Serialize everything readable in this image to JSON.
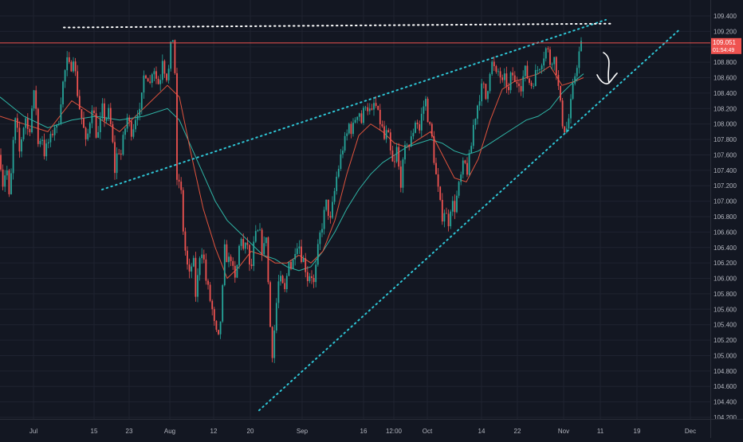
{
  "chart_data": {
    "type": "candlestick",
    "symbol_price_label": "109.051",
    "countdown_label": "01:54:49",
    "y_ticks": [
      "104.200",
      "104.400",
      "104.600",
      "104.800",
      "105.000",
      "105.200",
      "105.400",
      "105.600",
      "105.800",
      "106.000",
      "106.200",
      "106.400",
      "106.600",
      "106.800",
      "107.000",
      "107.200",
      "107.400",
      "107.600",
      "107.800",
      "108.000",
      "108.200",
      "108.400",
      "108.600",
      "108.800",
      "109.000",
      "109.200",
      "109.400"
    ],
    "y_range": [
      104.13,
      109.47
    ],
    "x_ticks": [
      "Jul",
      "15",
      "23",
      "Aug",
      "12",
      "20",
      "Sep",
      "16",
      "12:00",
      "Oct",
      "14",
      "22",
      "Nov",
      "11",
      "19",
      "Dec"
    ],
    "current_price": 109.051,
    "colors": {
      "background": "#131722",
      "grid": "#1f2330",
      "up": "#26a69a",
      "down": "#ef5350",
      "ma_fast": "#e0533d",
      "ma_slow": "#2fb5a6",
      "trendline": "#2ec6d6",
      "resistance": "#ffffff",
      "price_line": "#ef5350",
      "axis_text": "#b2b5be"
    },
    "price_path": [
      [
        0,
        107.6
      ],
      [
        4,
        107.2
      ],
      [
        8,
        107.5
      ],
      [
        12,
        106.95
      ],
      [
        16,
        107.7
      ],
      [
        20,
        108.1
      ],
      [
        24,
        107.6
      ],
      [
        28,
        107.9
      ],
      [
        32,
        108.1
      ],
      [
        36,
        107.85
      ],
      [
        40,
        108.2
      ],
      [
        44,
        108.45
      ],
      [
        48,
        107.7
      ],
      [
        52,
        107.9
      ],
      [
        56,
        107.6
      ],
      [
        60,
        107.75
      ],
      [
        64,
        107.8
      ],
      [
        68,
        108.0
      ],
      [
        72,
        107.9
      ],
      [
        76,
        108.3
      ],
      [
        80,
        108.6
      ],
      [
        84,
        108.8
      ],
      [
        88,
        108.7
      ],
      [
        92,
        108.9
      ],
      [
        96,
        108.5
      ],
      [
        100,
        108.2
      ],
      [
        104,
        108.0
      ],
      [
        108,
        107.7
      ],
      [
        112,
        108.0
      ],
      [
        116,
        108.3
      ],
      [
        120,
        107.9
      ],
      [
        124,
        107.85
      ],
      [
        128,
        108.2
      ],
      [
        132,
        108.05
      ],
      [
        136,
        108.15
      ],
      [
        140,
        107.9
      ],
      [
        144,
        107.4
      ],
      [
        148,
        107.7
      ],
      [
        152,
        107.6
      ],
      [
        156,
        107.9
      ],
      [
        160,
        108.1
      ],
      [
        164,
        107.9
      ],
      [
        168,
        108.0
      ],
      [
        172,
        108.2
      ],
      [
        176,
        108.1
      ],
      [
        180,
        108.6
      ],
      [
        184,
        108.7
      ],
      [
        188,
        108.5
      ],
      [
        192,
        108.8
      ],
      [
        196,
        108.6
      ],
      [
        200,
        108.5
      ],
      [
        204,
        108.9
      ],
      [
        208,
        108.6
      ],
      [
        212,
        108.7
      ],
      [
        216,
        109.2
      ],
      [
        219,
        108.9
      ],
      [
        222,
        107.2
      ],
      [
        226,
        107.3
      ],
      [
        230,
        106.6
      ],
      [
        234,
        106.2
      ],
      [
        238,
        106.0
      ],
      [
        242,
        106.3
      ],
      [
        246,
        105.7
      ],
      [
        250,
        106.3
      ],
      [
        254,
        106.4
      ],
      [
        258,
        106.0
      ],
      [
        262,
        105.8
      ],
      [
        266,
        105.6
      ],
      [
        270,
        105.3
      ],
      [
        274,
        105.2
      ],
      [
        278,
        105.6
      ],
      [
        282,
        106.4
      ],
      [
        286,
        106.2
      ],
      [
        290,
        106.3
      ],
      [
        294,
        105.9
      ],
      [
        298,
        106.2
      ],
      [
        302,
        106.6
      ],
      [
        306,
        106.3
      ],
      [
        310,
        106.5
      ],
      [
        314,
        106.0
      ],
      [
        318,
        106.4
      ],
      [
        322,
        106.6
      ],
      [
        326,
        106.55
      ],
      [
        330,
        106.3
      ],
      [
        334,
        106.6
      ],
      [
        338,
        105.5
      ],
      [
        342,
        105.0
      ],
      [
        346,
        105.6
      ],
      [
        350,
        106.0
      ],
      [
        354,
        105.9
      ],
      [
        358,
        105.8
      ],
      [
        362,
        106.3
      ],
      [
        366,
        106.1
      ],
      [
        370,
        106.4
      ],
      [
        374,
        106.5
      ],
      [
        378,
        106.3
      ],
      [
        382,
        106.2
      ],
      [
        386,
        106.0
      ],
      [
        390,
        106.1
      ],
      [
        394,
        105.9
      ],
      [
        398,
        106.3
      ],
      [
        402,
        106.6
      ],
      [
        406,
        106.8
      ],
      [
        410,
        107.0
      ],
      [
        414,
        106.7
      ],
      [
        418,
        107.0
      ],
      [
        422,
        107.3
      ],
      [
        426,
        107.5
      ],
      [
        430,
        107.7
      ],
      [
        434,
        107.8
      ],
      [
        438,
        108.0
      ],
      [
        442,
        107.9
      ],
      [
        446,
        108.1
      ],
      [
        450,
        108.2
      ],
      [
        454,
        108.0
      ],
      [
        458,
        108.3
      ],
      [
        462,
        108.2
      ],
      [
        466,
        108.1
      ],
      [
        470,
        108.3
      ],
      [
        474,
        108.1
      ],
      [
        478,
        108.0
      ],
      [
        482,
        107.8
      ],
      [
        486,
        107.9
      ],
      [
        490,
        107.6
      ],
      [
        494,
        107.4
      ],
      [
        498,
        107.7
      ],
      [
        502,
        107.2
      ],
      [
        506,
        107.5
      ],
      [
        510,
        107.8
      ],
      [
        514,
        107.7
      ],
      [
        518,
        107.9
      ],
      [
        522,
        108.1
      ],
      [
        526,
        107.9
      ],
      [
        530,
        108.2
      ],
      [
        534,
        108.3
      ],
      [
        538,
        108.0
      ],
      [
        542,
        107.8
      ],
      [
        546,
        107.4
      ],
      [
        550,
        107.1
      ],
      [
        554,
        106.8
      ],
      [
        558,
        106.9
      ],
      [
        562,
        106.7
      ],
      [
        566,
        107.0
      ],
      [
        570,
        106.9
      ],
      [
        574,
        107.1
      ],
      [
        578,
        107.3
      ],
      [
        582,
        107.5
      ],
      [
        586,
        107.4
      ],
      [
        590,
        107.6
      ],
      [
        594,
        108.0
      ],
      [
        598,
        108.2
      ],
      [
        602,
        108.4
      ],
      [
        606,
        108.5
      ],
      [
        610,
        108.3
      ],
      [
        614,
        108.7
      ],
      [
        618,
        108.8
      ],
      [
        622,
        108.6
      ],
      [
        626,
        108.7
      ],
      [
        630,
        108.5
      ],
      [
        634,
        108.6
      ],
      [
        638,
        108.4
      ],
      [
        642,
        108.7
      ],
      [
        646,
        108.5
      ],
      [
        650,
        108.6
      ],
      [
        654,
        108.5
      ],
      [
        658,
        108.7
      ],
      [
        662,
        108.6
      ],
      [
        666,
        108.5
      ],
      [
        670,
        108.6
      ],
      [
        674,
        108.7
      ],
      [
        678,
        108.8
      ],
      [
        682,
        108.9
      ],
      [
        686,
        109.0
      ],
      [
        690,
        108.8
      ],
      [
        694,
        108.9
      ],
      [
        698,
        108.7
      ],
      [
        702,
        108.3
      ],
      [
        706,
        108.0
      ],
      [
        710,
        107.9
      ],
      [
        714,
        108.1
      ],
      [
        718,
        108.4
      ],
      [
        722,
        108.7
      ],
      [
        726,
        108.9
      ],
      [
        730,
        109.05
      ]
    ],
    "ma_fast": [
      [
        0,
        108.1
      ],
      [
        30,
        108.0
      ],
      [
        60,
        107.9
      ],
      [
        90,
        108.3
      ],
      [
        120,
        108.1
      ],
      [
        150,
        107.9
      ],
      [
        180,
        108.2
      ],
      [
        210,
        108.5
      ],
      [
        225,
        108.35
      ],
      [
        240,
        107.6
      ],
      [
        255,
        106.9
      ],
      [
        270,
        106.4
      ],
      [
        285,
        106.0
      ],
      [
        300,
        106.15
      ],
      [
        315,
        106.35
      ],
      [
        330,
        106.3
      ],
      [
        345,
        106.2
      ],
      [
        360,
        106.2
      ],
      [
        375,
        106.3
      ],
      [
        390,
        106.2
      ],
      [
        405,
        106.35
      ],
      [
        420,
        106.75
      ],
      [
        435,
        107.35
      ],
      [
        450,
        107.85
      ],
      [
        465,
        108.0
      ],
      [
        480,
        107.9
      ],
      [
        495,
        107.75
      ],
      [
        510,
        107.7
      ],
      [
        525,
        107.8
      ],
      [
        540,
        107.9
      ],
      [
        555,
        107.6
      ],
      [
        570,
        107.3
      ],
      [
        585,
        107.25
      ],
      [
        600,
        107.55
      ],
      [
        615,
        108.05
      ],
      [
        630,
        108.45
      ],
      [
        645,
        108.55
      ],
      [
        660,
        108.6
      ],
      [
        675,
        108.65
      ],
      [
        690,
        108.75
      ],
      [
        705,
        108.5
      ],
      [
        720,
        108.55
      ],
      [
        732,
        108.6
      ]
    ],
    "ma_slow": [
      [
        0,
        108.35
      ],
      [
        30,
        108.1
      ],
      [
        60,
        107.95
      ],
      [
        90,
        108.05
      ],
      [
        120,
        108.1
      ],
      [
        150,
        108.05
      ],
      [
        180,
        108.1
      ],
      [
        210,
        108.2
      ],
      [
        225,
        108.05
      ],
      [
        240,
        107.7
      ],
      [
        255,
        107.35
      ],
      [
        270,
        107.0
      ],
      [
        285,
        106.75
      ],
      [
        300,
        106.6
      ],
      [
        315,
        106.45
      ],
      [
        330,
        106.3
      ],
      [
        345,
        106.25
      ],
      [
        360,
        106.15
      ],
      [
        375,
        106.1
      ],
      [
        390,
        106.15
      ],
      [
        405,
        106.35
      ],
      [
        420,
        106.6
      ],
      [
        435,
        106.9
      ],
      [
        450,
        107.15
      ],
      [
        465,
        107.35
      ],
      [
        480,
        107.5
      ],
      [
        495,
        107.6
      ],
      [
        510,
        107.7
      ],
      [
        525,
        107.75
      ],
      [
        540,
        107.8
      ],
      [
        555,
        107.75
      ],
      [
        570,
        107.65
      ],
      [
        585,
        107.6
      ],
      [
        600,
        107.65
      ],
      [
        615,
        107.75
      ],
      [
        630,
        107.85
      ],
      [
        645,
        107.95
      ],
      [
        660,
        108.05
      ],
      [
        675,
        108.1
      ],
      [
        690,
        108.2
      ],
      [
        705,
        108.4
      ],
      [
        720,
        108.55
      ],
      [
        732,
        108.65
      ]
    ]
  }
}
